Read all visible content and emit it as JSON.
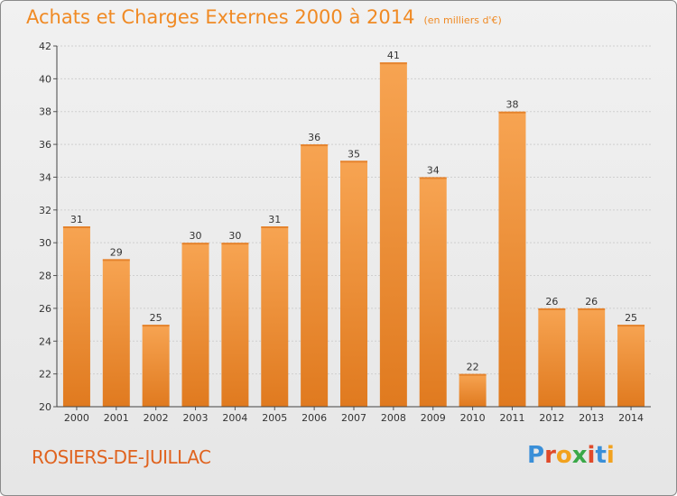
{
  "header": {
    "title": "Achats et Charges Externes 2000 à 2014",
    "subtitle": "(en milliers d'€)"
  },
  "footer": {
    "commune": "ROSIERS-DE-JUILLAC",
    "logo_letters": [
      "P",
      "r",
      "o",
      "x",
      "i",
      "t",
      "i"
    ],
    "logo_colors": [
      "#3a8fd8",
      "#e04a2a",
      "#f2a21e",
      "#3aa848",
      "#e04a2a",
      "#3a8fd8",
      "#f2a21e"
    ]
  },
  "colors": {
    "bar_top": "#f7a452",
    "bar_bottom": "#e07a1f",
    "title": "#f08a24",
    "axis_text": "#333333",
    "grid": "#cfcfcf"
  },
  "chart_data": {
    "type": "bar",
    "categories": [
      "2000",
      "2001",
      "2002",
      "2003",
      "2004",
      "2005",
      "2006",
      "2007",
      "2008",
      "2009",
      "2010",
      "2011",
      "2012",
      "2013",
      "2014"
    ],
    "values": [
      31,
      29,
      25,
      30,
      30,
      31,
      36,
      35,
      41,
      34,
      22,
      38,
      26,
      26,
      25
    ],
    "ylim": [
      20,
      42
    ],
    "yticks": [
      20,
      22,
      24,
      26,
      28,
      30,
      32,
      34,
      36,
      38,
      40,
      42
    ],
    "grid": true,
    "title": "Achats et Charges Externes 2000 à 2014",
    "xlabel": "",
    "ylabel": ""
  }
}
